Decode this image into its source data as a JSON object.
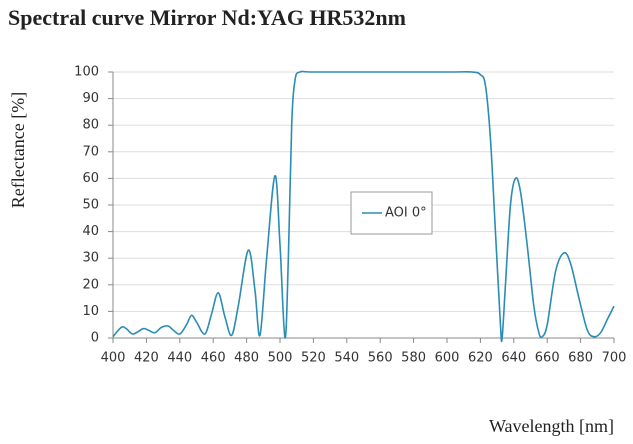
{
  "chart_data": {
    "type": "line",
    "title": "Spectral curve Mirror Nd:YAG HR532nm",
    "x_label": "Wavelength [nm]",
    "y_label": "Reflectance [%]",
    "x": [
      400,
      405,
      408,
      412,
      418,
      421,
      425,
      429,
      433,
      436,
      440,
      444,
      447,
      450,
      455,
      459,
      463,
      467,
      471,
      475,
      481,
      485,
      488,
      492,
      497,
      500,
      503,
      505,
      507,
      509,
      512,
      520,
      560,
      600,
      615,
      620,
      623,
      626,
      629,
      632,
      633,
      635,
      638,
      641,
      644,
      648,
      652,
      655,
      657,
      660,
      665,
      670,
      674,
      679,
      684,
      688,
      692,
      696,
      700
    ],
    "series": [
      {
        "name": "AOI 0°",
        "color": "#2a8db3",
        "values": [
          0.5,
          4,
          3.5,
          1.5,
          3.5,
          3,
          2,
          4,
          4.5,
          3,
          1.5,
          5,
          8.5,
          6,
          1.5,
          9,
          17,
          8,
          1,
          12,
          33,
          18,
          1,
          30,
          61,
          35,
          0,
          30,
          80,
          97,
          100,
          100,
          100,
          100,
          100,
          99,
          95,
          75,
          40,
          5,
          0,
          20,
          50,
          60,
          55,
          35,
          12,
          2,
          0.5,
          5,
          25,
          32,
          28,
          15,
          3,
          0.5,
          2,
          7,
          12
        ]
      }
    ],
    "xlim": [
      400,
      700
    ],
    "xticks": [
      400,
      420,
      440,
      460,
      480,
      500,
      520,
      540,
      560,
      580,
      600,
      620,
      640,
      660,
      680,
      700
    ],
    "ylim": [
      0,
      100
    ],
    "yticks": [
      0,
      10,
      20,
      30,
      40,
      50,
      60,
      70,
      80,
      90,
      100
    ],
    "grid": true
  }
}
